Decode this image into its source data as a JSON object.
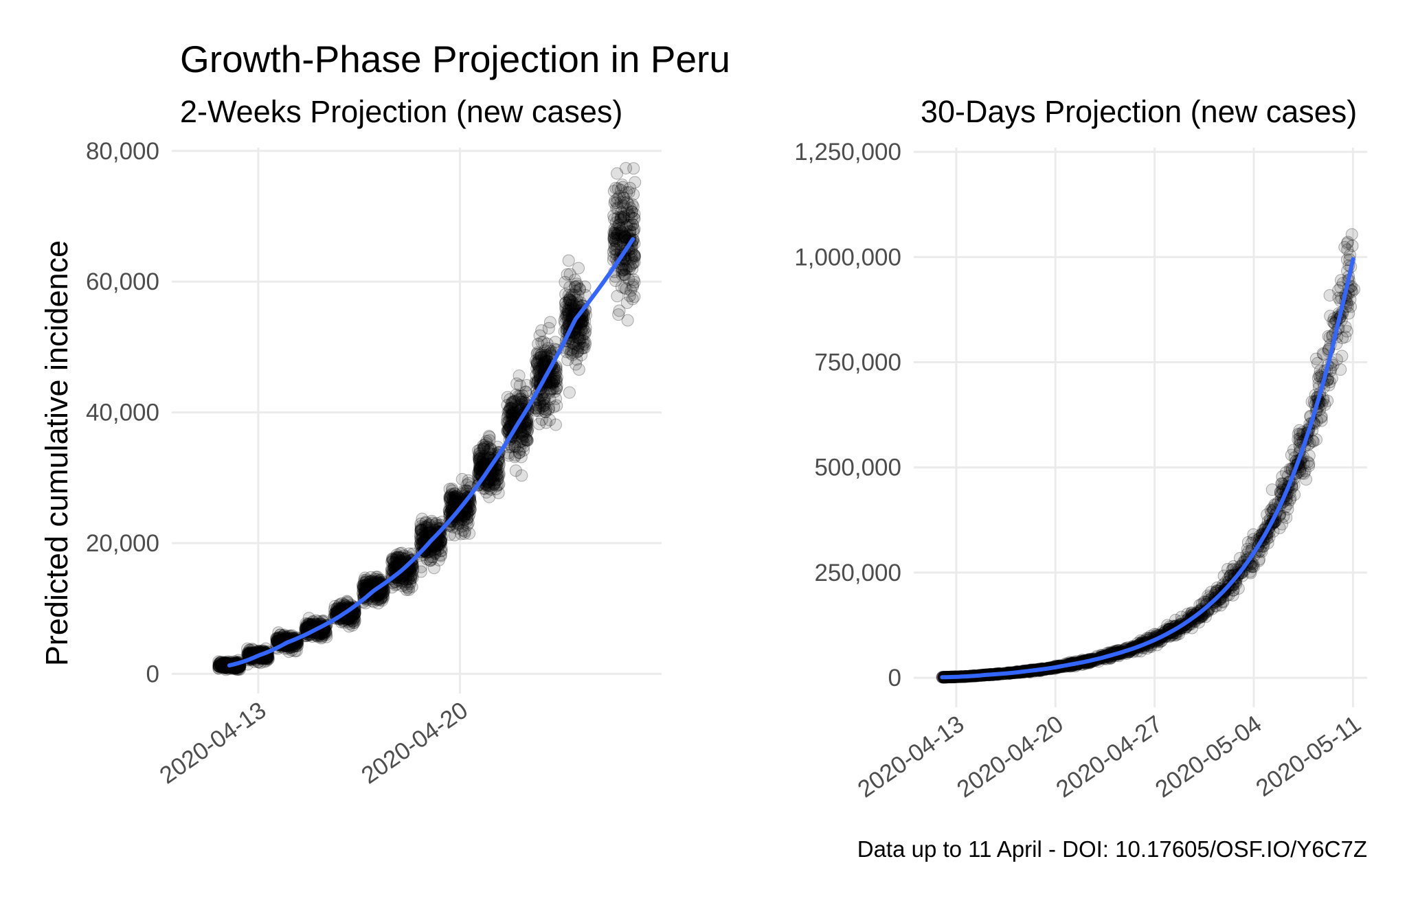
{
  "chart_data": {
    "title": "Growth-Phase Projection in Peru",
    "caption": "Data up to 11 April - DOI: 10.17605/OSF.IO/Y6C7Z",
    "ylabel": "Predicted cumulative incidence",
    "panels": [
      {
        "type": "scatter",
        "subtitle": "2-Weeks Projection (new cases)",
        "xlim": [
          "2020-04-10",
          "2020-04-27"
        ],
        "ylim": [
          -3000,
          80500
        ],
        "x_ticks": [
          "2020-04-13",
          "2020-04-20"
        ],
        "y_ticks": [
          0,
          20000,
          40000,
          60000,
          80000
        ],
        "y_tick_labels": [
          "0",
          "20,000",
          "40,000",
          "60,000",
          "80,000"
        ],
        "points_color": "#000000",
        "points_opacity": 0.12,
        "x": [
          "2020-04-12",
          "2020-04-13",
          "2020-04-14",
          "2020-04-15",
          "2020-04-16",
          "2020-04-17",
          "2020-04-18",
          "2020-04-19",
          "2020-04-20",
          "2020-04-21",
          "2020-04-22",
          "2020-04-23",
          "2020-04-24",
          "2020-04-25",
          "2020-04-26"
        ],
        "y_center": [
          1300,
          2800,
          4800,
          6800,
          9300,
          12700,
          15900,
          20400,
          25300,
          31300,
          38200,
          45700,
          54200,
          66500,
          66500
        ],
        "y_spread": [
          500,
          700,
          900,
          1000,
          1300,
          1700,
          2100,
          2600,
          3000,
          3700,
          4300,
          5200,
          6000,
          7500,
          7500
        ],
        "series": [
          {
            "name": "",
            "type": "line",
            "color": "#3366ff",
            "x": [
              "2020-04-12",
              "2020-04-13",
              "2020-04-14",
              "2020-04-15",
              "2020-04-16",
              "2020-04-17",
              "2020-04-18",
              "2020-04-19",
              "2020-04-20",
              "2020-04-21",
              "2020-04-22",
              "2020-04-23",
              "2020-04-24",
              "2020-04-25",
              "2020-04-26"
            ],
            "y": [
              1300,
              2800,
              4800,
              6800,
              9300,
              12700,
              15900,
              20400,
              25300,
              31300,
              38200,
              45700,
              54200,
              66500,
              66500
            ]
          }
        ]
      },
      {
        "type": "scatter",
        "subtitle": "30-Days Projection (new cases)",
        "xlim": [
          "2020-04-10",
          "2020-05-12"
        ],
        "ylim": [
          -70000,
          1260000
        ],
        "x_ticks": [
          "2020-04-13",
          "2020-04-20",
          "2020-04-27",
          "2020-05-04",
          "2020-05-11"
        ],
        "y_ticks": [
          0,
          250000,
          500000,
          750000,
          1000000,
          1250000
        ],
        "y_tick_labels": [
          "0",
          "250,000",
          "500,000",
          "750,000",
          "1,000,000",
          "1,250,000"
        ],
        "points_color": "#000000",
        "points_opacity": 0.12,
        "series": [
          {
            "name": "",
            "type": "line",
            "color": "#3366ff",
            "x": [
              "2020-04-12",
              "2020-04-15",
              "2020-04-18",
              "2020-04-21",
              "2020-04-24",
              "2020-04-27",
              "2020-04-30",
              "2020-05-03",
              "2020-05-06",
              "2020-05-08",
              "2020-05-10",
              "2020-05-11"
            ],
            "y": [
              1300,
              6800,
              15900,
              31300,
              54200,
              90000,
              150000,
              250000,
              420000,
              600000,
              850000,
              995000
            ]
          }
        ]
      }
    ]
  }
}
